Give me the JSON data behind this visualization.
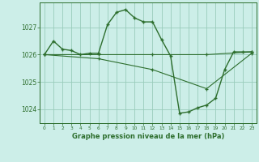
{
  "title": "Graphe pression niveau de la mer (hPa)",
  "bg_color": "#cceee8",
  "grid_color": "#99ccbb",
  "line_color": "#2d6e2d",
  "marker_color": "#2d6e2d",
  "xlim": [
    -0.5,
    23.5
  ],
  "ylim": [
    1023.5,
    1027.9
  ],
  "yticks": [
    1024,
    1025,
    1026,
    1027
  ],
  "xticks": [
    0,
    1,
    2,
    3,
    4,
    5,
    6,
    7,
    8,
    9,
    10,
    11,
    12,
    13,
    14,
    15,
    16,
    17,
    18,
    19,
    20,
    21,
    22,
    23
  ],
  "series1": {
    "x": [
      0,
      1,
      2,
      3,
      4,
      5,
      6,
      7,
      8,
      9,
      10,
      11,
      12,
      13,
      14,
      15,
      16,
      17,
      18,
      19,
      20,
      21,
      22,
      23
    ],
    "y": [
      1026.0,
      1026.5,
      1026.2,
      1026.15,
      1026.0,
      1026.05,
      1026.05,
      1027.1,
      1027.55,
      1027.65,
      1027.35,
      1027.2,
      1027.2,
      1026.55,
      1025.95,
      1023.85,
      1023.9,
      1024.05,
      1024.15,
      1024.4,
      1025.45,
      1026.1,
      1026.1,
      1026.1
    ]
  },
  "series2": {
    "x": [
      0,
      6,
      12,
      18,
      23
    ],
    "y": [
      1026.0,
      1026.0,
      1026.0,
      1026.0,
      1026.1
    ]
  },
  "series3": {
    "x": [
      0,
      6,
      12,
      18,
      23
    ],
    "y": [
      1026.0,
      1025.85,
      1025.45,
      1024.75,
      1026.05
    ]
  }
}
